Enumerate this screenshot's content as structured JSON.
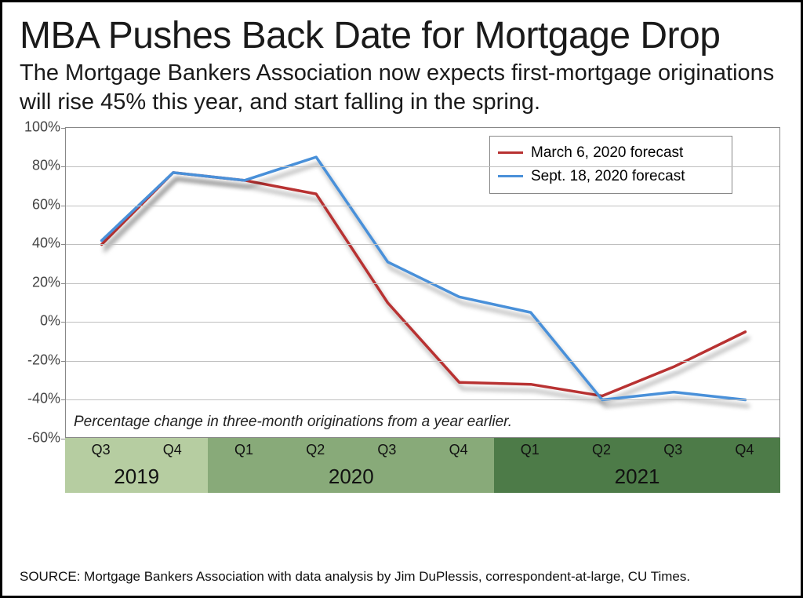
{
  "title": "MBA Pushes Back Date for Mortgage Drop",
  "subtitle": "The Mortgage Bankers Association now expects first-mortgage originations will rise 45% this year, and start falling in the spring.",
  "plot_note": "Percentage change in three-month originations from a year earlier.",
  "source": "SOURCE: Mortgage Bankers Association with data analysis by Jim DuPlessis, correspondent-at-large, CU Times.",
  "chart": {
    "type": "line",
    "ylim": [
      -60,
      100
    ],
    "ytick_step": 20,
    "yticks": [
      100,
      80,
      60,
      40,
      20,
      0,
      -20,
      -40,
      -60
    ],
    "ytick_suffix": "%",
    "grid_color": "#bfbfbf",
    "border_color": "#888888",
    "background_color": "#ffffff",
    "shadow_color": "rgba(0,0,0,0.35)",
    "shadow_dx": 4,
    "shadow_dy": 8,
    "line_width": 3.5,
    "x_categories": [
      "Q3",
      "Q4",
      "Q1",
      "Q2",
      "Q3",
      "Q4",
      "Q1",
      "Q2",
      "Q3",
      "Q4"
    ],
    "x_years": [
      {
        "label": "2019",
        "span": 2,
        "bg": "#b6cda1"
      },
      {
        "label": "2020",
        "span": 4,
        "bg": "#88aa79"
      },
      {
        "label": "2021",
        "span": 4,
        "bg": "#4d7b48"
      }
    ],
    "series": [
      {
        "name": "March 6, 2020 forecast",
        "color": "#b83232",
        "values": [
          40,
          77,
          73,
          66,
          10,
          -31,
          -32,
          -38,
          -23,
          -5
        ]
      },
      {
        "name": "Sept. 18, 2020 forecast",
        "color": "#4a90d9",
        "values": [
          42,
          77,
          73,
          85,
          31,
          13,
          5,
          -40,
          -36,
          -40
        ]
      }
    ],
    "legend": {
      "border_color": "#888888",
      "fontsize": 19
    },
    "title_fontsize": 48,
    "subtitle_fontsize": 29,
    "axis_label_fontsize": 18
  }
}
